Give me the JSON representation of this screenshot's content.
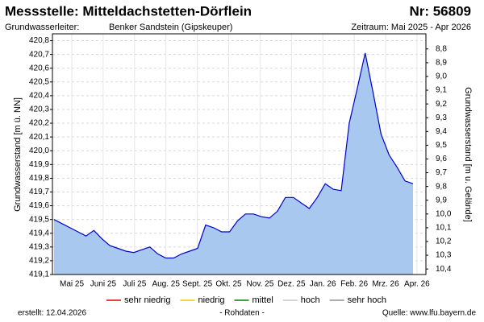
{
  "chart_data": {
    "type": "area",
    "title": "Messstelle: Mitteldachstetten-Dörflein",
    "number": "Nr: 56809",
    "aquifer_label": "Grundwasserleiter:",
    "aquifer": "Benker Sandstein (Gipskeuper)",
    "period": "Zeitraum: Mai 2025 - Apr 2026",
    "ylabel": "Grundwasserstand [m ü. NN]",
    "y2label": "Grundwasserstand [m u. Gelände]",
    "months": [
      "Mai 25",
      "Juni 25",
      "Juli 25",
      "Aug. 25",
      "Sept. 25",
      "Okt. 25",
      "Nov. 25",
      "Dez. 25",
      "Jan. 26",
      "Feb. 26",
      "Mrz. 26",
      "Apr. 26"
    ],
    "ylim": [
      419.1,
      420.85
    ],
    "yticks": [
      {
        "value": 419.1,
        "label": "419,1"
      },
      {
        "value": 419.2,
        "label": "419,2"
      },
      {
        "value": 419.3,
        "label": "419,3"
      },
      {
        "value": 419.4,
        "label": "419,4"
      },
      {
        "value": 419.5,
        "label": "419,5"
      },
      {
        "value": 419.6,
        "label": "419,6"
      },
      {
        "value": 419.7,
        "label": "419,7"
      },
      {
        "value": 419.8,
        "label": "419,8"
      },
      {
        "value": 419.9,
        "label": "419,9"
      },
      {
        "value": 420.0,
        "label": "420,0"
      },
      {
        "value": 420.1,
        "label": "420,1"
      },
      {
        "value": 420.2,
        "label": "420,2"
      },
      {
        "value": 420.3,
        "label": "420,3"
      },
      {
        "value": 420.4,
        "label": "420,4"
      },
      {
        "value": 420.5,
        "label": "420,5"
      },
      {
        "value": 420.6,
        "label": "420,6"
      },
      {
        "value": 420.7,
        "label": "420,7"
      },
      {
        "value": 420.8,
        "label": "420,8"
      }
    ],
    "y2lim": [
      10.44,
      8.69
    ],
    "y2ticks": [
      {
        "value": 8.8,
        "label": "8,8"
      },
      {
        "value": 8.9,
        "label": "8,9"
      },
      {
        "value": 9.0,
        "label": "9,0"
      },
      {
        "value": 9.1,
        "label": "9,1"
      },
      {
        "value": 9.2,
        "label": "9,2"
      },
      {
        "value": 9.3,
        "label": "9,3"
      },
      {
        "value": 9.4,
        "label": "9,4"
      },
      {
        "value": 9.5,
        "label": "9,5"
      },
      {
        "value": 9.6,
        "label": "9,6"
      },
      {
        "value": 9.7,
        "label": "9,7"
      },
      {
        "value": 9.8,
        "label": "9,8"
      },
      {
        "value": 9.9,
        "label": "9,9"
      },
      {
        "value": 10.0,
        "label": "10,0"
      },
      {
        "value": 10.1,
        "label": "10,1"
      },
      {
        "value": 10.2,
        "label": "10,2"
      },
      {
        "value": 10.3,
        "label": "10,3"
      },
      {
        "value": 10.4,
        "label": "10,4"
      }
    ],
    "grid": true,
    "series": [
      {
        "color": "#0000cc",
        "fill": "#a9c8f0",
        "values": [
          419.5,
          419.47,
          419.44,
          419.41,
          419.38,
          419.42,
          419.36,
          419.31,
          419.29,
          419.27,
          419.26,
          419.28,
          419.3,
          419.25,
          419.22,
          419.22,
          419.25,
          419.27,
          419.29,
          419.46,
          419.44,
          419.41,
          419.41,
          419.49,
          419.54,
          419.54,
          419.52,
          419.51,
          419.56,
          419.66,
          419.66,
          419.62,
          419.58,
          419.66,
          419.76,
          419.72,
          419.71,
          420.2,
          420.45,
          420.71,
          420.42,
          420.12,
          419.97,
          419.88,
          419.78,
          419.76
        ]
      }
    ],
    "legend": [
      {
        "name": "sehr niedrig",
        "color": "#e00000"
      },
      {
        "name": "niedrig",
        "color": "#f0c800"
      },
      {
        "name": "mittel",
        "color": "#008000"
      },
      {
        "name": "hoch",
        "color": "#c8c8c8"
      },
      {
        "name": "sehr hoch",
        "color": "#909090"
      }
    ],
    "created": "erstellt:  12.04.2026",
    "note": "- Rohdaten -",
    "source": "Quelle: www.lfu.bayern.de"
  }
}
